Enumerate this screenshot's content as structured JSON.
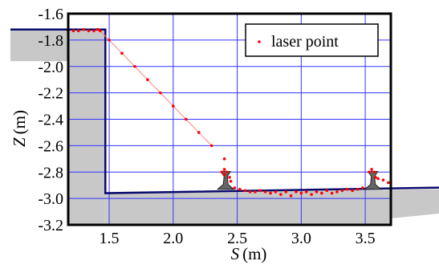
{
  "chart_data": {
    "type": "scatter",
    "xlabel": "S",
    "xlabel_unit": "(m)",
    "ylabel": "Z",
    "ylabel_unit": "(m)",
    "xlim": [
      1.18,
      3.7
    ],
    "ylim": [
      -3.2,
      -1.6
    ],
    "x_ticks": [
      1.5,
      2.0,
      2.5,
      3.0,
      3.5
    ],
    "x_tick_labels": [
      "1.5",
      "2.0",
      "2.5",
      "3.0",
      "3.5"
    ],
    "y_ticks": [
      -1.6,
      -1.8,
      -2.0,
      -2.2,
      -2.4,
      -2.6,
      -2.8,
      -3.0,
      -3.2
    ],
    "y_tick_labels": [
      "-1.6",
      "-1.8",
      "-2.0",
      "-2.2",
      "-2.4",
      "-2.6",
      "-2.8",
      "-3.0",
      "-3.2"
    ],
    "grid": true,
    "legend_position": "top-right",
    "series": [
      {
        "name": "laser point",
        "color": "#ff0000",
        "points": [
          [
            1.18,
            -1.73
          ],
          [
            1.22,
            -1.73
          ],
          [
            1.26,
            -1.73
          ],
          [
            1.3,
            -1.72
          ],
          [
            1.34,
            -1.73
          ],
          [
            1.38,
            -1.73
          ],
          [
            1.41,
            -1.72
          ],
          [
            1.43,
            -1.73
          ],
          [
            1.5,
            -1.8
          ],
          [
            1.6,
            -1.9
          ],
          [
            1.7,
            -2.0
          ],
          [
            1.8,
            -2.1
          ],
          [
            1.9,
            -2.2
          ],
          [
            2.0,
            -2.3
          ],
          [
            2.1,
            -2.4
          ],
          [
            2.2,
            -2.5
          ],
          [
            2.3,
            -2.6
          ],
          [
            2.4,
            -2.7
          ],
          [
            2.4,
            -2.82
          ],
          [
            2.38,
            -2.8
          ],
          [
            2.4,
            -2.78
          ],
          [
            2.42,
            -2.8
          ],
          [
            2.44,
            -2.84
          ],
          [
            2.45,
            -2.87
          ],
          [
            2.48,
            -2.92
          ],
          [
            2.52,
            -2.93
          ],
          [
            2.56,
            -2.94
          ],
          [
            2.6,
            -2.95
          ],
          [
            2.64,
            -2.95
          ],
          [
            2.68,
            -2.94
          ],
          [
            2.72,
            -2.95
          ],
          [
            2.76,
            -2.96
          ],
          [
            2.8,
            -2.95
          ],
          [
            2.84,
            -2.97
          ],
          [
            2.88,
            -2.95
          ],
          [
            2.92,
            -2.98
          ],
          [
            2.96,
            -2.95
          ],
          [
            3.0,
            -2.96
          ],
          [
            3.04,
            -2.95
          ],
          [
            3.08,
            -2.97
          ],
          [
            3.12,
            -2.95
          ],
          [
            3.16,
            -2.96
          ],
          [
            3.2,
            -2.94
          ],
          [
            3.24,
            -2.96
          ],
          [
            3.28,
            -2.95
          ],
          [
            3.32,
            -2.94
          ],
          [
            3.36,
            -2.93
          ],
          [
            3.4,
            -2.94
          ],
          [
            3.44,
            -2.93
          ],
          [
            3.48,
            -2.92
          ],
          [
            3.53,
            -2.8
          ],
          [
            3.55,
            -2.78
          ],
          [
            3.57,
            -2.8
          ],
          [
            3.58,
            -2.84
          ],
          [
            3.6,
            -2.85
          ],
          [
            3.64,
            -2.86
          ],
          [
            3.68,
            -2.88
          ]
        ]
      }
    ],
    "profile_line": [
      [
        1.18,
        -1.72
      ],
      [
        1.47,
        -1.72
      ],
      [
        1.47,
        -2.96
      ],
      [
        3.7,
        -2.93
      ]
    ],
    "rails": [
      2.41,
      3.56
    ]
  },
  "colors": {
    "grid": "#3333ff",
    "profile": "#0a0a6e",
    "ground": "#c8c8c8",
    "points": "#ff0000"
  }
}
